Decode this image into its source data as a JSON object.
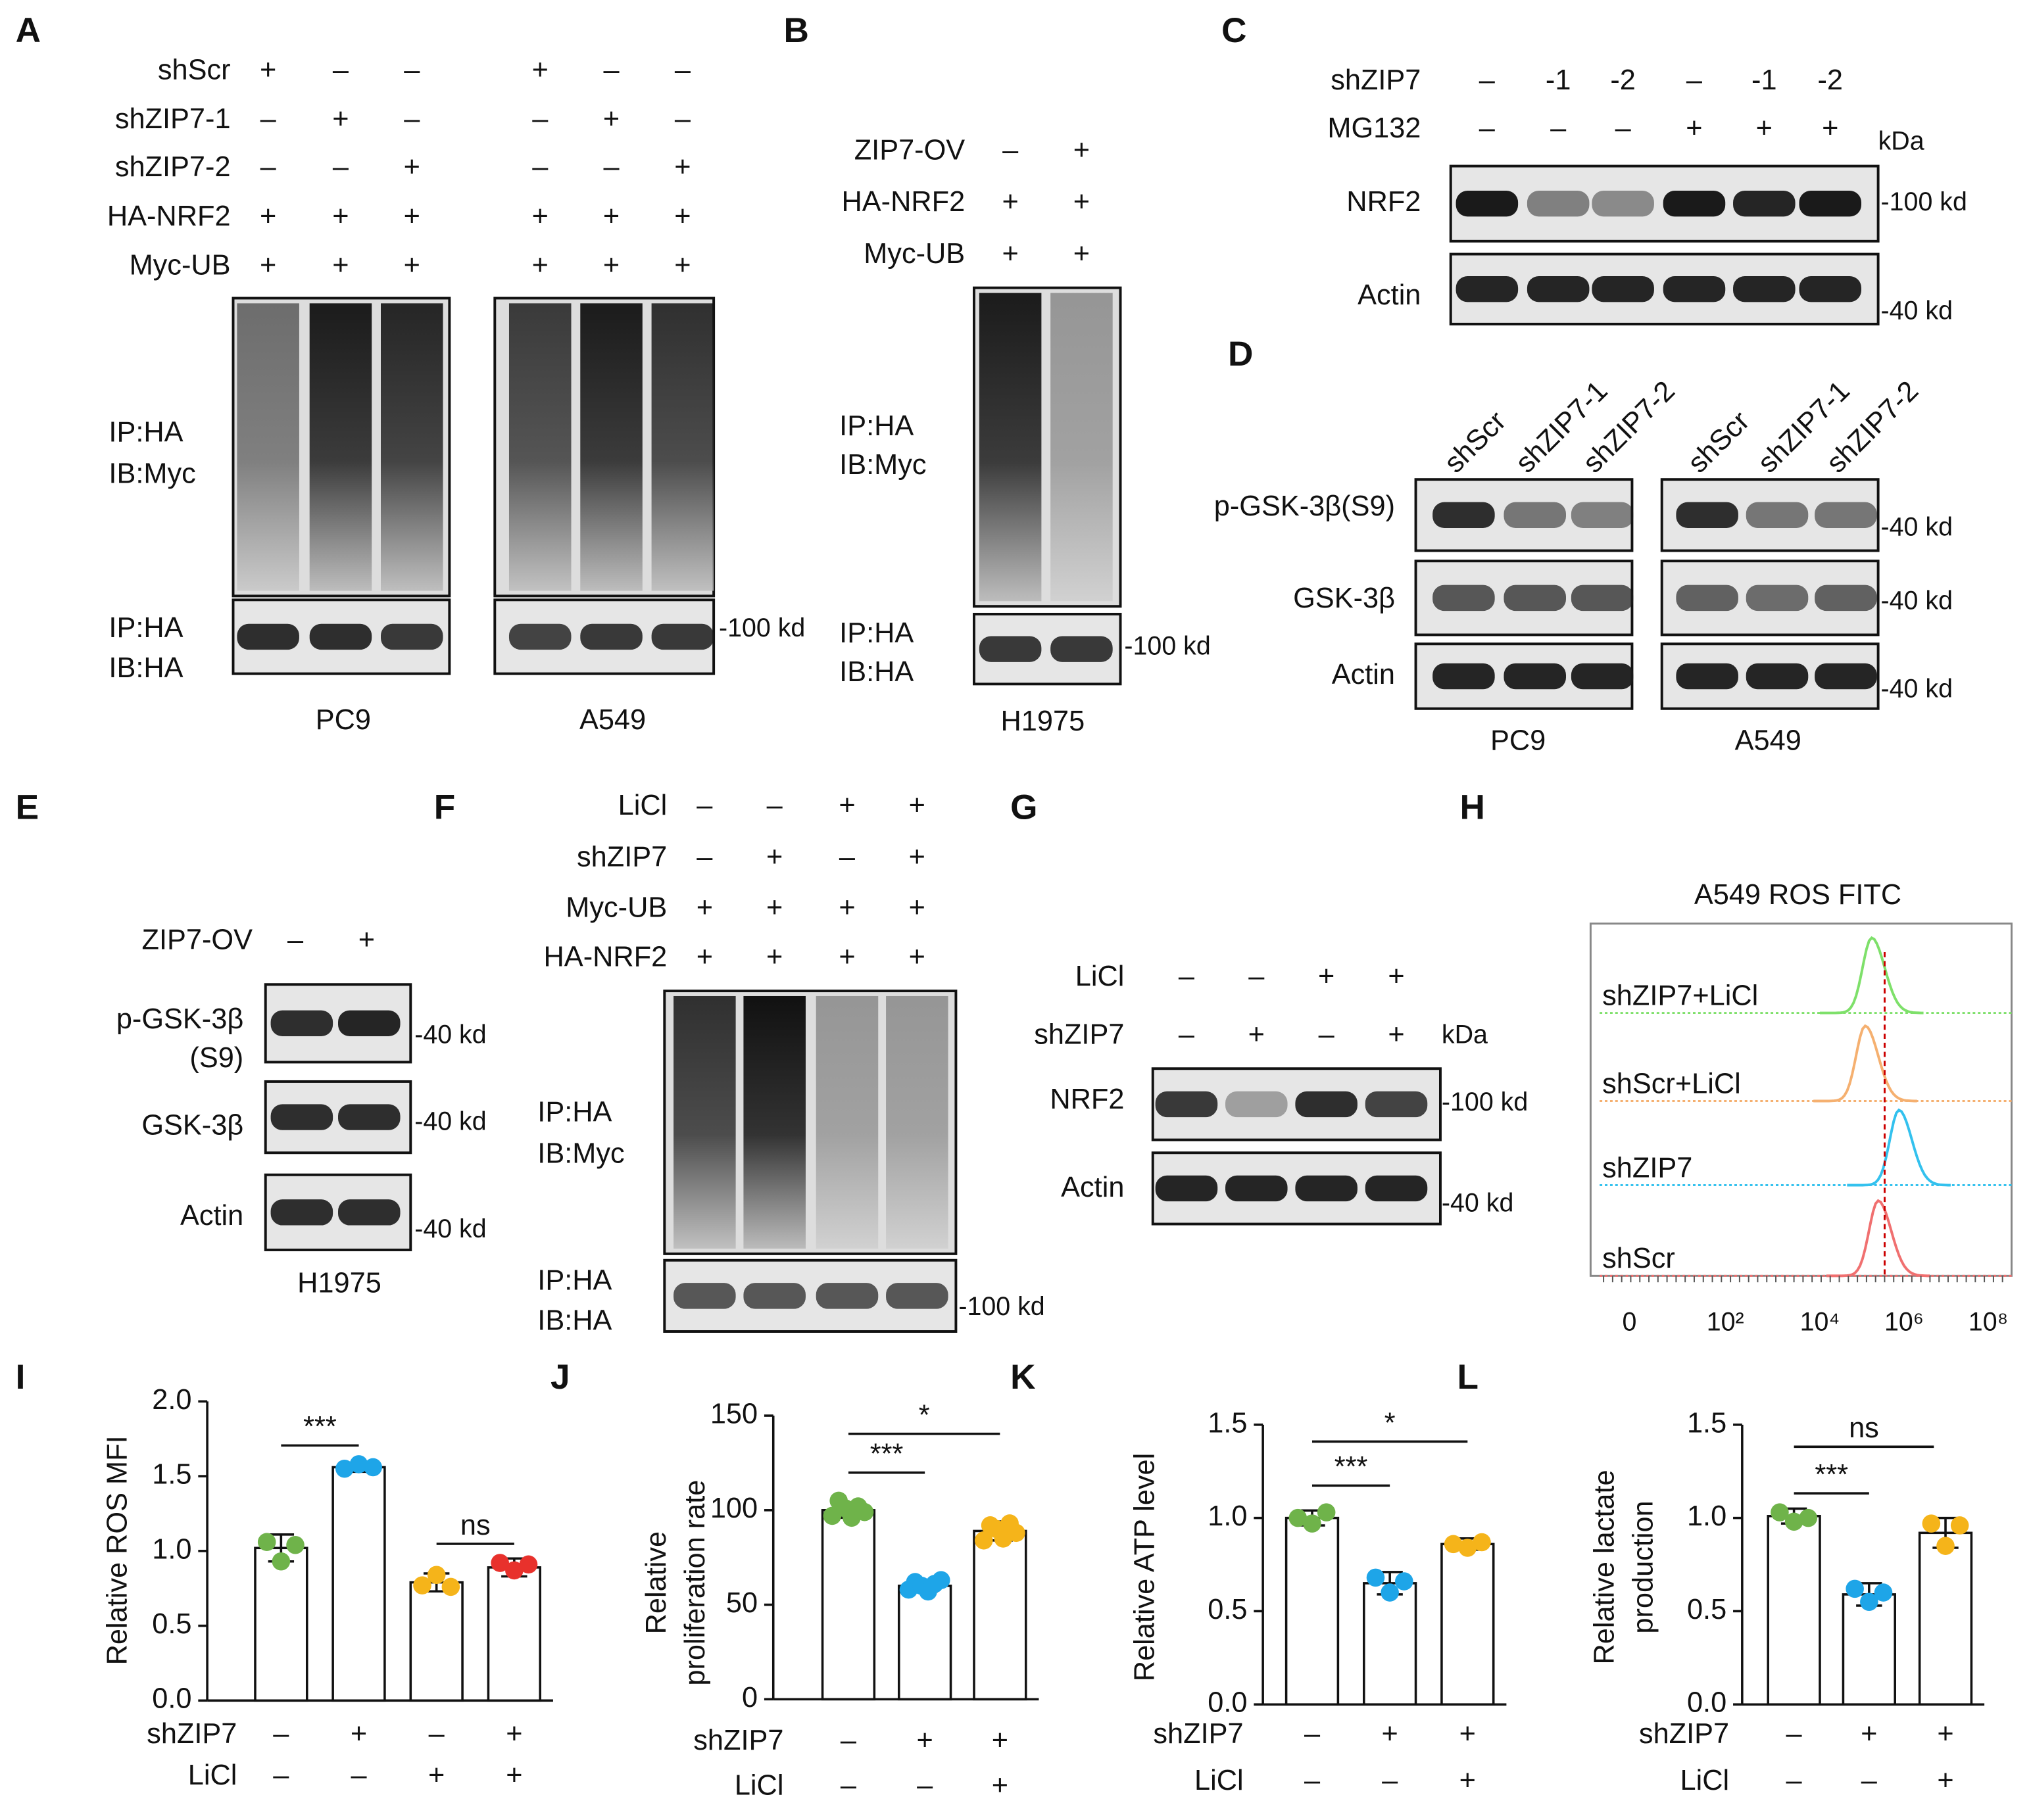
{
  "panels": {
    "A": {
      "letter": "A",
      "rows": [
        {
          "label": "shScr",
          "signs": [
            "+",
            "–",
            "–",
            "+",
            "–",
            "–"
          ]
        },
        {
          "label": "shZIP7-1",
          "signs": [
            "–",
            "+",
            "–",
            "–",
            "+",
            "–"
          ]
        },
        {
          "label": "shZIP7-2",
          "signs": [
            "–",
            "–",
            "+",
            "–",
            "–",
            "+"
          ]
        },
        {
          "label": "HA-NRF2",
          "signs": [
            "+",
            "+",
            "+",
            "+",
            "+",
            "+"
          ]
        },
        {
          "label": "Myc-UB",
          "signs": [
            "+",
            "+",
            "+",
            "+",
            "+",
            "+"
          ]
        }
      ],
      "blot_labels": [
        [
          "IP:HA",
          "IB:Myc"
        ],
        [
          "IP:HA",
          "IB:HA"
        ]
      ],
      "markers": [
        "-100 kd"
      ],
      "cells": [
        "PC9",
        "A549"
      ]
    },
    "B": {
      "letter": "B",
      "rows": [
        {
          "label": "ZIP7-OV",
          "signs": [
            "–",
            "+"
          ]
        },
        {
          "label": "HA-NRF2",
          "signs": [
            "+",
            "+"
          ]
        },
        {
          "label": "Myc-UB",
          "signs": [
            "+",
            "+"
          ]
        }
      ],
      "blot_labels": [
        [
          "IP:HA",
          "IB:Myc"
        ],
        [
          "IP:HA",
          "IB:HA"
        ]
      ],
      "markers": [
        "-100 kd"
      ],
      "cells": [
        "H1975"
      ]
    },
    "C": {
      "letter": "C",
      "rows": [
        {
          "label": "shZIP7",
          "signs": [
            "–",
            "-1",
            "-2",
            "–",
            "-1",
            "-2"
          ]
        },
        {
          "label": "MG132",
          "signs": [
            "–",
            "–",
            "–",
            "+",
            "+",
            "+"
          ]
        }
      ],
      "unit": "kDa",
      "blot_labels": [
        [
          "NRF2"
        ],
        [
          "Actin"
        ]
      ],
      "markers": [
        "-100 kd",
        "-40 kd"
      ]
    },
    "D": {
      "letter": "D",
      "columns": [
        "shScr",
        "shZIP7-1",
        "shZIP7-2",
        "shScr",
        "shZIP7-1",
        "shZIP7-2"
      ],
      "blot_labels": [
        [
          "p-GSK-3β(S9)"
        ],
        [
          "GSK-3β"
        ],
        [
          "Actin"
        ]
      ],
      "markers": [
        "-40 kd",
        "-40 kd",
        "-40 kd"
      ],
      "cells": [
        "PC9",
        "A549"
      ]
    },
    "E": {
      "letter": "E",
      "rows": [
        {
          "label": "ZIP7-OV",
          "signs": [
            "–",
            "+"
          ]
        }
      ],
      "blot_labels": [
        [
          "p-GSK-3β",
          "(S9)"
        ],
        [
          "GSK-3β"
        ],
        [
          "Actin"
        ]
      ],
      "markers": [
        "-40 kd",
        "-40 kd",
        "-40 kd"
      ],
      "cells": [
        "H1975"
      ]
    },
    "F": {
      "letter": "F",
      "rows": [
        {
          "label": "LiCl",
          "signs": [
            "–",
            "–",
            "+",
            "+"
          ]
        },
        {
          "label": "shZIP7",
          "signs": [
            "–",
            "+",
            "–",
            "+"
          ]
        },
        {
          "label": "Myc-UB",
          "signs": [
            "+",
            "+",
            "+",
            "+"
          ]
        },
        {
          "label": "HA-NRF2",
          "signs": [
            "+",
            "+",
            "+",
            "+"
          ]
        }
      ],
      "blot_labels": [
        [
          "IP:HA",
          "IB:Myc"
        ],
        [
          "IP:HA",
          "IB:HA"
        ]
      ],
      "markers": [
        "-100 kd"
      ]
    },
    "G": {
      "letter": "G",
      "rows": [
        {
          "label": "LiCl",
          "signs": [
            "–",
            "–",
            "+",
            "+"
          ]
        },
        {
          "label": "shZIP7",
          "signs": [
            "–",
            "+",
            "–",
            "+"
          ]
        }
      ],
      "unit": "kDa",
      "blot_labels": [
        [
          "NRF2"
        ],
        [
          "Actin"
        ]
      ],
      "markers": [
        "-100 kd",
        "-40 kd"
      ]
    },
    "H": {
      "letter": "H",
      "title": "A549 ROS FITC",
      "samples": [
        "shZIP7+LiCl",
        "shScr+LiCl",
        "shZIP7",
        "shScr"
      ],
      "xtick_labels": [
        "0",
        "10²",
        "10⁴",
        "10⁶",
        "10⁸"
      ]
    }
  },
  "chart_data": [
    {
      "type": "bar",
      "letter": "I",
      "ylabel": [
        "Relative ROS MFI"
      ],
      "ylim": [
        0,
        2
      ],
      "yticks": [
        {
          "value": 0,
          "label": "0.0"
        },
        0.5,
        {
          "value": 1,
          "label": "1.0"
        },
        1.5,
        {
          "value": 2,
          "label": "2.0"
        }
      ],
      "condition_rows": [
        {
          "label": "shZIP7",
          "signs": [
            "–",
            "+",
            "–",
            "+"
          ]
        },
        {
          "label": "LiCl",
          "signs": [
            "–",
            "–",
            "+",
            "+"
          ]
        }
      ],
      "values": [
        1.02,
        1.56,
        0.79,
        0.89
      ],
      "errors": [
        0.09,
        0.03,
        0.06,
        0.06
      ],
      "points": [
        [
          1.06,
          0.93,
          1.04
        ],
        [
          1.55,
          1.58,
          1.56
        ],
        [
          0.77,
          0.84,
          0.76
        ],
        [
          0.92,
          0.87,
          0.91
        ]
      ],
      "colors": [
        "#6fb34a",
        "#1ea5e8",
        "#f5b41a",
        "#e8312c"
      ],
      "annotations": [
        "***",
        "ns"
      ]
    },
    {
      "type": "bar",
      "letter": "J",
      "ylabel": [
        "Relative",
        "proliferation rate"
      ],
      "ylim": [
        0,
        150
      ],
      "yticks": [
        0,
        50,
        100,
        150
      ],
      "condition_rows": [
        {
          "label": "shZIP7",
          "signs": [
            "–",
            "+",
            "+"
          ]
        },
        {
          "label": "LiCl",
          "signs": [
            "–",
            "–",
            "+"
          ]
        }
      ],
      "values": [
        100,
        60,
        89
      ],
      "errors": [
        4,
        3,
        5
      ],
      "points": [
        [
          97,
          105,
          101,
          96,
          102,
          99
        ],
        [
          58,
          62,
          60,
          57,
          61,
          63
        ],
        [
          84,
          92,
          90,
          85,
          93,
          88
        ]
      ],
      "colors": [
        "#6fb34a",
        "#1ea5e8",
        "#f5b41a"
      ],
      "annotations": [
        "***",
        "*"
      ]
    },
    {
      "type": "bar",
      "letter": "K",
      "ylabel": [
        "Relative ATP level"
      ],
      "ylim": [
        0,
        1.5
      ],
      "yticks": [
        {
          "value": 0,
          "label": "0.0"
        },
        0.5,
        {
          "value": 1,
          "label": "1.0"
        },
        1.5
      ],
      "condition_rows": [
        {
          "label": "shZIP7",
          "signs": [
            "–",
            "+",
            "+"
          ]
        },
        {
          "label": "LiCl",
          "signs": [
            "–",
            "–",
            "+"
          ]
        }
      ],
      "values": [
        1.0,
        0.65,
        0.86
      ],
      "errors": [
        0.04,
        0.06,
        0.03
      ],
      "points": [
        [
          1.0,
          0.97,
          1.03
        ],
        [
          0.68,
          0.6,
          0.66
        ],
        [
          0.86,
          0.84,
          0.87
        ]
      ],
      "colors": [
        "#6fb34a",
        "#1ea5e8",
        "#f5b41a"
      ],
      "annotations": [
        "***",
        "*"
      ]
    },
    {
      "type": "bar",
      "letter": "L",
      "ylabel": [
        "Relative lactate",
        "production"
      ],
      "ylim": [
        0,
        1.5
      ],
      "yticks": [
        {
          "value": 0,
          "label": "0.0"
        },
        0.5,
        {
          "value": 1,
          "label": "1.0"
        },
        1.5
      ],
      "condition_rows": [
        {
          "label": "shZIP7",
          "signs": [
            "–",
            "+",
            "+"
          ]
        },
        {
          "label": "LiCl",
          "signs": [
            "–",
            "–",
            "+"
          ]
        }
      ],
      "values": [
        1.01,
        0.59,
        0.92
      ],
      "errors": [
        0.04,
        0.06,
        0.08
      ],
      "points": [
        [
          1.03,
          0.98,
          1.0
        ],
        [
          0.62,
          0.55,
          0.6
        ],
        [
          0.97,
          0.85,
          0.96
        ]
      ],
      "colors": [
        "#6fb34a",
        "#1ea5e8",
        "#f5b41a"
      ],
      "annotations": [
        "***",
        "ns"
      ]
    }
  ]
}
